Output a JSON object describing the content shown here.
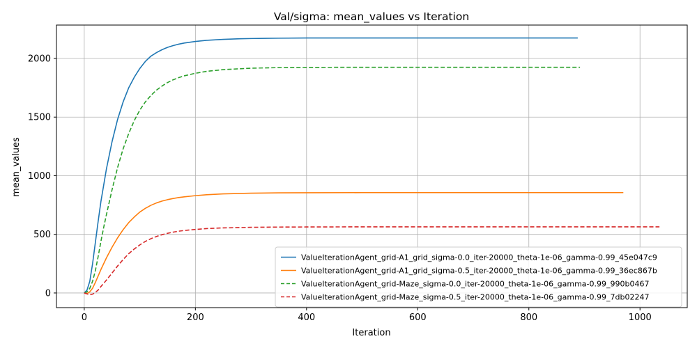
{
  "chart_data": {
    "type": "line",
    "title": "Val/sigma: mean_values vs Iteration",
    "xlabel": "Iteration",
    "ylabel": "mean_values",
    "xlim": [
      -50,
      1085
    ],
    "ylim": [
      -125,
      2285
    ],
    "xticks": [
      0,
      200,
      400,
      600,
      800,
      1000
    ],
    "yticks": [
      0,
      500,
      1000,
      1500,
      2000
    ],
    "grid": true,
    "legend_position": "lower-right",
    "series": [
      {
        "name": "ValueIterationAgent_grid-A1_grid_sigma-0.0_iter-20000_theta-1e-06_gamma-0.99_45e047c9",
        "color": "#1f77b4",
        "style": "solid",
        "x": [
          0,
          5,
          10,
          15,
          20,
          25,
          30,
          40,
          50,
          60,
          70,
          80,
          90,
          100,
          110,
          120,
          130,
          140,
          150,
          160,
          170,
          180,
          200,
          220,
          250,
          280,
          300,
          350,
          400,
          500,
          600,
          700,
          800,
          888
        ],
        "y": [
          0,
          25,
          100,
          250,
          430,
          610,
          780,
          1060,
          1290,
          1480,
          1630,
          1750,
          1840,
          1915,
          1975,
          2020,
          2050,
          2075,
          2095,
          2110,
          2122,
          2132,
          2145,
          2155,
          2163,
          2168,
          2170,
          2173,
          2175,
          2175,
          2175,
          2175,
          2175,
          2175
        ]
      },
      {
        "name": "ValueIterationAgent_grid-A1_grid_sigma-0.5_iter-20000_theta-1e-06_gamma-0.99_36ec867b",
        "color": "#ff7f0e",
        "style": "solid",
        "x": [
          0,
          5,
          10,
          15,
          20,
          25,
          30,
          40,
          50,
          60,
          70,
          80,
          90,
          100,
          110,
          120,
          130,
          140,
          150,
          160,
          170,
          180,
          200,
          220,
          250,
          300,
          350,
          400,
          500,
          600,
          700,
          800,
          900,
          970
        ],
        "y": [
          0,
          -5,
          10,
          40,
          90,
          145,
          200,
          300,
          390,
          470,
          540,
          600,
          648,
          690,
          722,
          748,
          768,
          784,
          796,
          806,
          814,
          820,
          830,
          838,
          845,
          851,
          854,
          855,
          856,
          856,
          856,
          856,
          856,
          856
        ]
      },
      {
        "name": "ValueIterationAgent_grid-Maze_sigma-0.0_iter-20000_theta-1e-06_gamma-0.99_990b0467",
        "color": "#2ca02c",
        "style": "dashed",
        "x": [
          0,
          5,
          10,
          15,
          20,
          25,
          30,
          35,
          40,
          50,
          60,
          70,
          80,
          90,
          100,
          110,
          120,
          130,
          140,
          150,
          160,
          170,
          180,
          200,
          220,
          250,
          300,
          350,
          400,
          500,
          600,
          700,
          800,
          892
        ],
        "y": [
          0,
          10,
          40,
          100,
          190,
          310,
          440,
          560,
          670,
          880,
          1070,
          1230,
          1360,
          1470,
          1560,
          1630,
          1685,
          1730,
          1765,
          1795,
          1818,
          1837,
          1852,
          1874,
          1890,
          1905,
          1917,
          1922,
          1924,
          1925,
          1925,
          1925,
          1925,
          1925
        ]
      },
      {
        "name": "ValueIterationAgent_grid-Maze_sigma-0.5_iter-20000_theta-1e-06_gamma-0.99_7db02247",
        "color": "#d62728",
        "style": "dashed",
        "x": [
          0,
          5,
          10,
          15,
          20,
          25,
          30,
          40,
          50,
          60,
          70,
          80,
          90,
          100,
          110,
          120,
          130,
          140,
          150,
          160,
          170,
          180,
          200,
          220,
          250,
          300,
          350,
          400,
          500,
          600,
          700,
          800,
          900,
          1035
        ],
        "y": [
          0,
          -8,
          -15,
          -10,
          5,
          25,
          55,
          110,
          170,
          230,
          285,
          335,
          375,
          410,
          440,
          463,
          482,
          497,
          509,
          519,
          527,
          533,
          542,
          549,
          555,
          560,
          562,
          563,
          564,
          564,
          564,
          564,
          564,
          564
        ]
      }
    ]
  }
}
